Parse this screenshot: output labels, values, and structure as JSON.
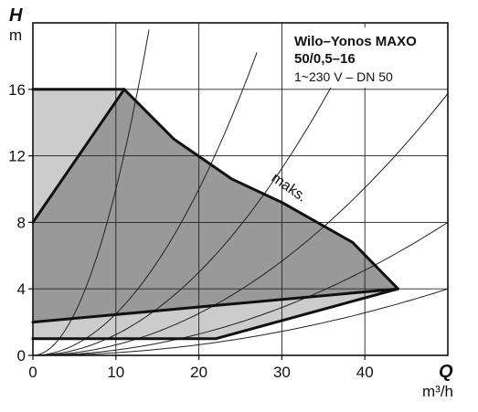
{
  "chart_data": {
    "type": "area",
    "title_line1": "Wilo–Yonos MAXO",
    "title_line2": "50/0,5–16",
    "subtitle": "1~230 V – DN 50",
    "x_axis": {
      "label": "Q",
      "unit": "m³/h",
      "ticks": [
        "0",
        "10",
        "20",
        "30",
        "40"
      ],
      "tick_values": [
        0,
        10,
        20,
        30,
        40
      ],
      "range": [
        0,
        50
      ]
    },
    "y_axis": {
      "label": "H",
      "unit": "m",
      "ticks": [
        "0",
        "4",
        "8",
        "12",
        "16"
      ],
      "tick_values": [
        0,
        4,
        8,
        12,
        16
      ],
      "range": [
        0,
        20
      ]
    },
    "grid": true,
    "annotation": "maks.",
    "regions": [
      {
        "id": "light",
        "color": "#cccccc",
        "points": [
          [
            0,
            16
          ],
          [
            11,
            16
          ],
          [
            0,
            8
          ],
          [
            0,
            2
          ],
          [
            44,
            4
          ],
          [
            22,
            1
          ],
          [
            0,
            1
          ]
        ]
      },
      {
        "id": "dark",
        "color": "#999999",
        "points": [
          [
            0,
            8
          ],
          [
            11,
            16
          ],
          [
            17,
            13
          ],
          [
            24,
            10.6
          ],
          [
            30,
            9.2
          ],
          [
            38.5,
            6.8
          ],
          [
            44,
            4
          ],
          [
            0,
            2
          ]
        ]
      }
    ],
    "series": [
      {
        "points": [
          [
            0,
            16
          ],
          [
            11,
            16
          ]
        ]
      },
      {
        "points": [
          [
            0,
            8
          ],
          [
            11,
            16
          ]
        ]
      },
      {
        "points": [
          [
            11,
            16
          ],
          [
            17,
            13
          ],
          [
            24,
            10.6
          ],
          [
            30,
            9.2
          ],
          [
            38.5,
            6.8
          ],
          [
            44,
            4
          ]
        ]
      },
      {
        "points": [
          [
            0,
            2
          ],
          [
            44,
            4
          ]
        ]
      },
      {
        "points": [
          [
            0,
            1
          ],
          [
            22,
            1
          ],
          [
            44,
            4
          ]
        ]
      }
    ],
    "system_curves": [
      {
        "k": 0.1,
        "max_q": 14
      },
      {
        "k": 0.025,
        "max_q": 27
      },
      {
        "k": 0.0125,
        "max_q": 37
      },
      {
        "k": 0.0063,
        "max_q": 50
      },
      {
        "k": 0.0032,
        "max_q": 50
      },
      {
        "k": 0.0016,
        "max_q": 50
      }
    ],
    "colors": {
      "light_region": "#cccccc",
      "dark_region": "#999999",
      "line": "#111111"
    }
  }
}
